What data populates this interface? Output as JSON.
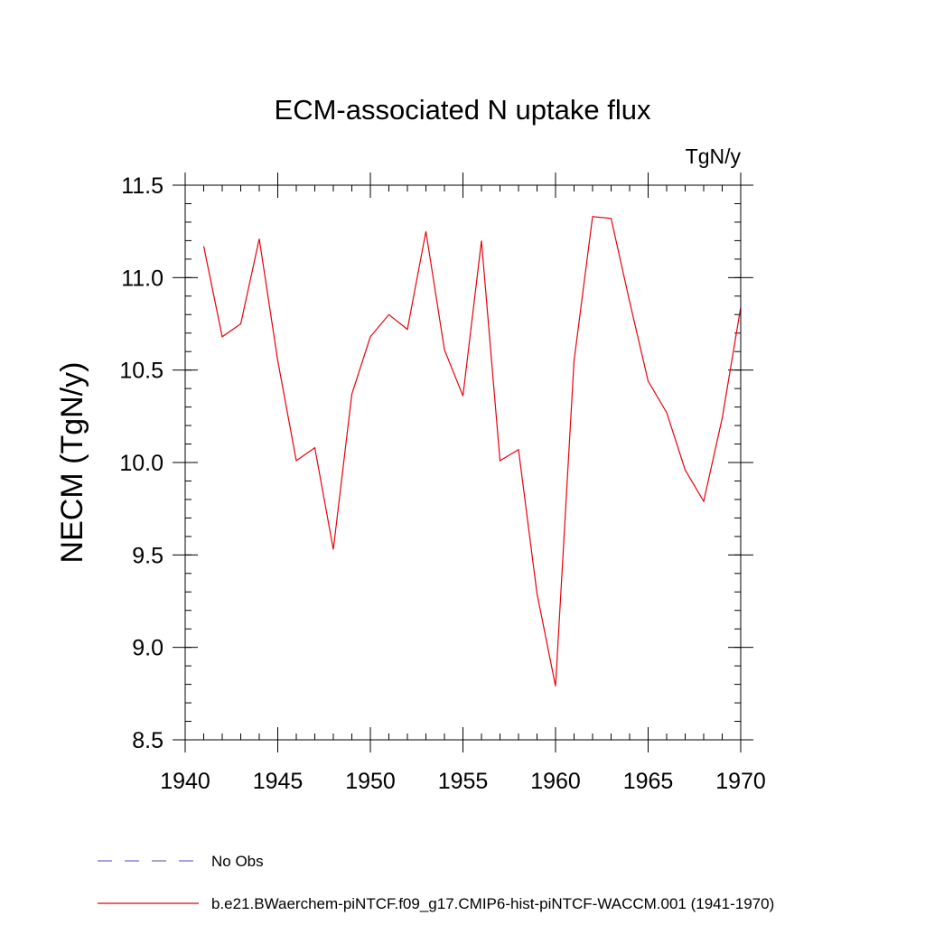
{
  "chart_data": {
    "type": "line",
    "title": "ECM-associated N uptake flux",
    "units_label": "TgN/y",
    "ylabel": "NECM  (TgN/y)",
    "xlabel": "",
    "xlim": [
      1940,
      1970
    ],
    "ylim": [
      8.5,
      11.5
    ],
    "x_ticks": [
      "1940",
      "1945",
      "1950",
      "1955",
      "1960",
      "1965",
      "1970"
    ],
    "y_ticks": [
      "8.5",
      "9.0",
      "9.5",
      "10.0",
      "10.5",
      "11.0",
      "11.5"
    ],
    "grid": false,
    "legend_position": "bottom-left",
    "series": [
      {
        "name": "No Obs",
        "color": "#7b68c8",
        "dashed": true,
        "x": [],
        "y": []
      },
      {
        "name": "b.e21.BWaerchem-piNTCF.f09_g17.CMIP6-hist-piNTCF-WACCM.001 (1941-1970)",
        "color": "#e8000b",
        "dashed": false,
        "x": [
          1941,
          1942,
          1943,
          1944,
          1945,
          1946,
          1947,
          1948,
          1949,
          1950,
          1951,
          1952,
          1953,
          1954,
          1955,
          1956,
          1957,
          1958,
          1959,
          1960,
          1961,
          1962,
          1963,
          1964,
          1965,
          1966,
          1967,
          1968,
          1969,
          1970
        ],
        "y": [
          11.17,
          10.68,
          10.75,
          11.21,
          10.55,
          10.01,
          10.08,
          9.53,
          10.37,
          10.68,
          10.8,
          10.72,
          11.25,
          10.61,
          10.36,
          11.2,
          10.01,
          10.07,
          9.29,
          8.79,
          10.55,
          11.33,
          11.32,
          10.87,
          10.44,
          10.27,
          9.96,
          9.79,
          10.24,
          10.84
        ]
      }
    ]
  }
}
